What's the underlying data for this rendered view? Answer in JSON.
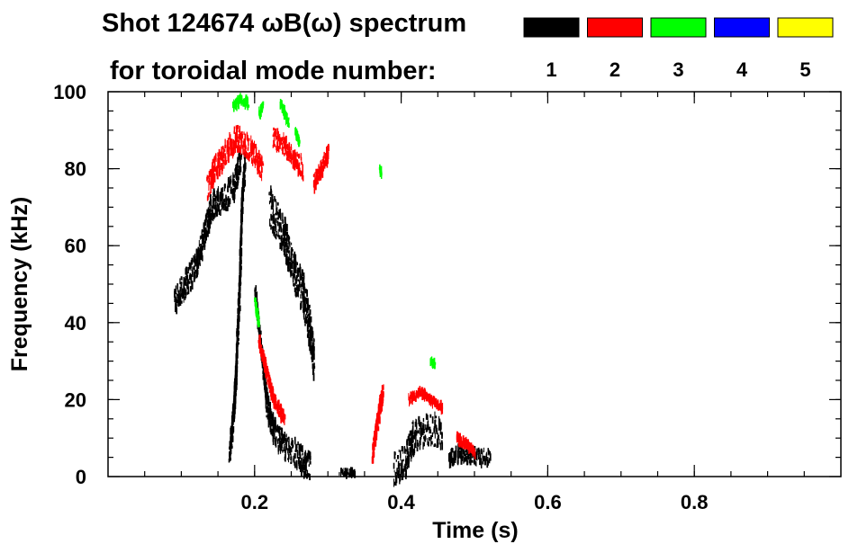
{
  "chart_data": {
    "type": "heatmap",
    "title_line1": "Shot 124674 ωB(ω) spectrum",
    "title_line2": "for toroidal mode number:",
    "xlabel": "Time (s)",
    "ylabel": "Frequency (kHz)",
    "xlim": [
      0.0,
      1.0
    ],
    "ylim": [
      0,
      100
    ],
    "xticks": [
      {
        "value": 0.2,
        "label": "0.2"
      },
      {
        "value": 0.4,
        "label": "0.4"
      },
      {
        "value": 0.6,
        "label": "0.6"
      },
      {
        "value": 0.8,
        "label": "0.8"
      }
    ],
    "yticks": [
      {
        "value": 0,
        "label": "0"
      },
      {
        "value": 20,
        "label": "20"
      },
      {
        "value": 40,
        "label": "40"
      },
      {
        "value": 60,
        "label": "60"
      },
      {
        "value": 80,
        "label": "80"
      },
      {
        "value": 100,
        "label": "100"
      }
    ],
    "x_minor_step": 0.05,
    "y_minor_step": 5,
    "grid": false,
    "legend_placement": "top-right",
    "series": [
      {
        "name": "1",
        "color": "#000000",
        "ridges": [
          {
            "points": [
              [
                0.09,
                45
              ],
              [
                0.105,
                50
              ],
              [
                0.12,
                55
              ],
              [
                0.13,
                62
              ],
              [
                0.14,
                70
              ],
              [
                0.155,
                72
              ],
              [
                0.17,
                75
              ],
              [
                0.18,
                82
              ]
            ],
            "width_khz": 7
          },
          {
            "points": [
              [
                0.165,
                5
              ],
              [
                0.172,
                20
              ],
              [
                0.178,
                45
              ],
              [
                0.182,
                70
              ],
              [
                0.186,
                82
              ]
            ],
            "width_khz": 5
          },
          {
            "points": [
              [
                0.2,
                48
              ],
              [
                0.21,
                30
              ],
              [
                0.215,
                20
              ]
            ],
            "width_khz": 3
          },
          {
            "points": [
              [
                0.22,
                70
              ],
              [
                0.24,
                62
              ],
              [
                0.255,
                52
              ],
              [
                0.265,
                48
              ],
              [
                0.275,
                38
              ],
              [
                0.28,
                30
              ]
            ],
            "width_khz": 10
          },
          {
            "points": [
              [
                0.215,
                20
              ],
              [
                0.225,
                12
              ],
              [
                0.24,
                8
              ],
              [
                0.26,
                5
              ],
              [
                0.275,
                2
              ]
            ],
            "width_khz": 7
          },
          {
            "points": [
              [
                0.39,
                2
              ],
              [
                0.405,
                4
              ],
              [
                0.415,
                10
              ],
              [
                0.43,
                12
              ],
              [
                0.445,
                12
              ],
              [
                0.455,
                10
              ]
            ],
            "width_khz": 8
          },
          {
            "points": [
              [
                0.465,
                5
              ],
              [
                0.48,
                6
              ],
              [
                0.5,
                5
              ],
              [
                0.52,
                5
              ]
            ],
            "width_khz": 4
          },
          {
            "points": [
              [
                0.315,
                1
              ],
              [
                0.325,
                1
              ],
              [
                0.335,
                1
              ]
            ],
            "width_khz": 1.5
          }
        ]
      },
      {
        "name": "2",
        "color": "#ff0000",
        "ridges": [
          {
            "points": [
              [
                0.135,
                75
              ],
              [
                0.145,
                80
              ],
              [
                0.16,
                84
              ],
              [
                0.175,
                88
              ],
              [
                0.195,
                85
              ],
              [
                0.21,
                80
              ]
            ],
            "width_khz": 6
          },
          {
            "points": [
              [
                0.225,
                88
              ],
              [
                0.24,
                86
              ],
              [
                0.255,
                82
              ],
              [
                0.265,
                80
              ]
            ],
            "width_khz": 5
          },
          {
            "points": [
              [
                0.28,
                76
              ],
              [
                0.29,
                80
              ],
              [
                0.3,
                84
              ]
            ],
            "width_khz": 4
          },
          {
            "points": [
              [
                0.205,
                35
              ],
              [
                0.215,
                28
              ],
              [
                0.225,
                20
              ],
              [
                0.24,
                15
              ]
            ],
            "width_khz": 3
          },
          {
            "points": [
              [
                0.36,
                5
              ],
              [
                0.365,
                12
              ],
              [
                0.37,
                18
              ],
              [
                0.375,
                22
              ]
            ],
            "width_khz": 4
          },
          {
            "points": [
              [
                0.41,
                20
              ],
              [
                0.425,
                22
              ],
              [
                0.44,
                20
              ],
              [
                0.455,
                18
              ]
            ],
            "width_khz": 2
          },
          {
            "points": [
              [
                0.475,
                10
              ],
              [
                0.49,
                8
              ],
              [
                0.5,
                6
              ]
            ],
            "width_khz": 2
          }
        ]
      },
      {
        "name": "3",
        "color": "#00ff00",
        "ridges": [
          {
            "points": [
              [
                0.17,
                96
              ],
              [
                0.18,
                98
              ],
              [
                0.19,
                97
              ]
            ],
            "width_khz": 2
          },
          {
            "points": [
              [
                0.205,
                94
              ],
              [
                0.21,
                96
              ]
            ],
            "width_khz": 2
          },
          {
            "points": [
              [
                0.2,
                45
              ],
              [
                0.205,
                40
              ]
            ],
            "width_khz": 2
          },
          {
            "points": [
              [
                0.235,
                97
              ],
              [
                0.245,
                92
              ]
            ],
            "width_khz": 2
          },
          {
            "points": [
              [
                0.255,
                90
              ],
              [
                0.26,
                87
              ]
            ],
            "width_khz": 2
          },
          {
            "points": [
              [
                0.37,
                80
              ],
              [
                0.372,
                79
              ]
            ],
            "width_khz": 1.5
          },
          {
            "points": [
              [
                0.44,
                30
              ],
              [
                0.445,
                29
              ]
            ],
            "width_khz": 1.5
          }
        ]
      },
      {
        "name": "4",
        "color": "#0000ff",
        "ridges": []
      },
      {
        "name": "5",
        "color": "#ffff00",
        "ridges": []
      }
    ]
  }
}
